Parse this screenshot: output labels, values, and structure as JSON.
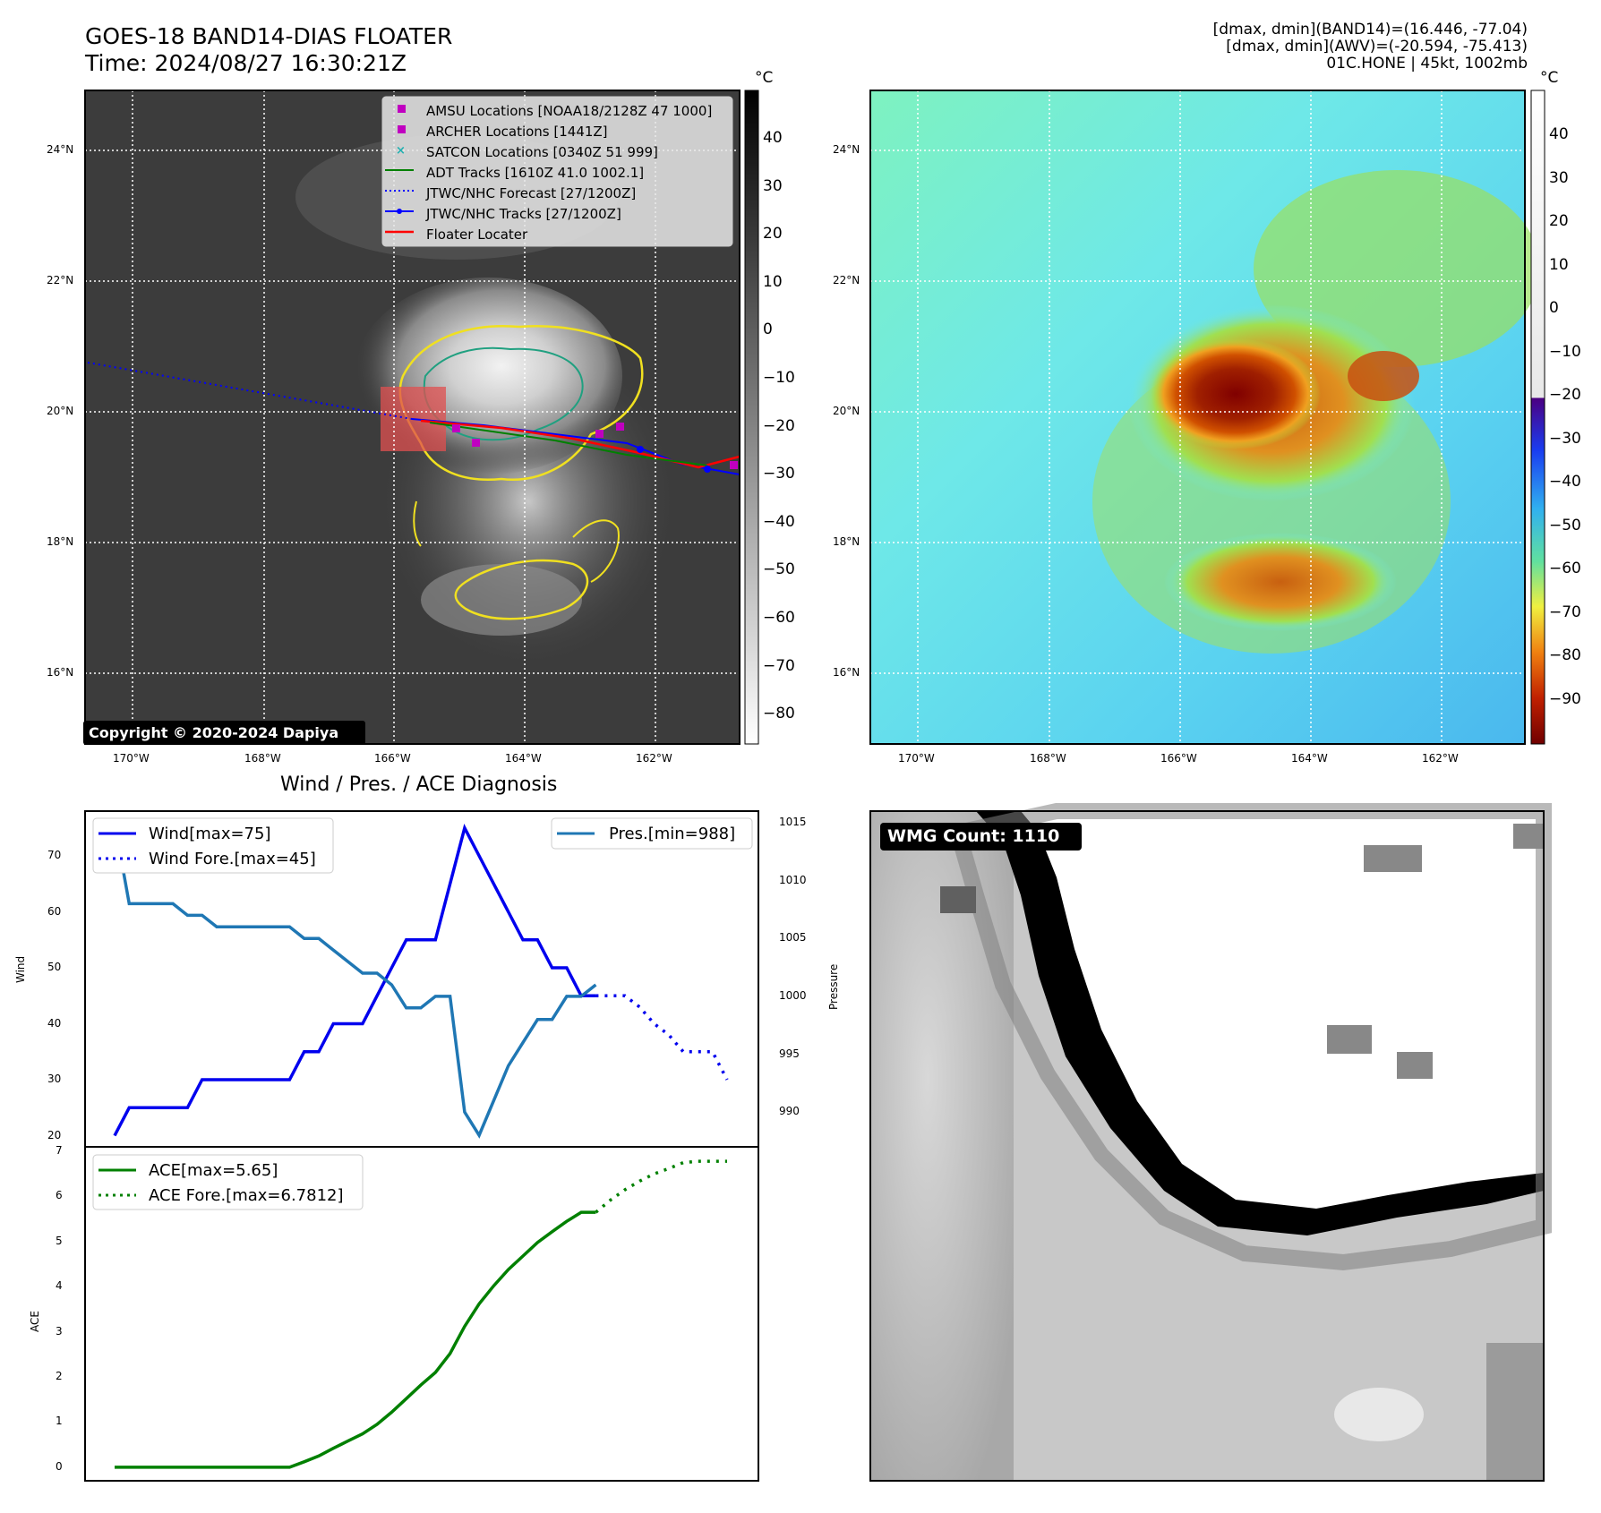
{
  "header": {
    "title_line1": "GOES-18 BAND14-DIAS FLOATER",
    "title_line2": "Time: 2024/08/27 16:30:21Z",
    "info_line1": "[dmax, dmin](BAND14)=(16.446, -77.04)",
    "info_line2": "[dmax, dmin](AWV)=(-20.594, -75.413)",
    "info_line3": "01C.HONE | 45kt, 1002mb"
  },
  "ir_panel": {
    "legend": [
      {
        "label": "AMSU Locations [NOAA18/2128Z 47 1000]",
        "color": "#c000c0",
        "marker": "square"
      },
      {
        "label": "ARCHER Locations [1441Z]",
        "color": "#c000c0",
        "marker": "square"
      },
      {
        "label": "SATCON Locations [0340Z 51 999]",
        "color": "#20b0b0",
        "marker": "x"
      },
      {
        "label": "ADT Tracks [1610Z 41.0 1002.1]",
        "color": "#008000",
        "marker": "line"
      },
      {
        "label": "JTWC/NHC Forecast [27/1200Z]",
        "color": "#0000ff",
        "marker": "dotted"
      },
      {
        "label": "JTWC/NHC Tracks [27/1200Z]",
        "color": "#0000ff",
        "marker": "line-dot"
      },
      {
        "label": "Floater Locater",
        "color": "#ff0000",
        "marker": "line"
      }
    ],
    "copyright": "Copyright © 2020-2024 Dapiya",
    "colorbar_unit": "°C",
    "colorbar_ticks": [
      "40",
      "30",
      "20",
      "10",
      "0",
      "−10",
      "−20",
      "−30",
      "−40",
      "−50",
      "−60",
      "−70",
      "−80"
    ]
  },
  "awv_panel": {
    "colorbar_unit": "°C",
    "colorbar_ticks": [
      "40",
      "30",
      "20",
      "10",
      "0",
      "−10",
      "−20",
      "−30",
      "−40",
      "−50",
      "−60",
      "−70",
      "−80",
      "−90"
    ]
  },
  "map_axes": {
    "lat_ticks": [
      "24°N",
      "22°N",
      "20°N",
      "18°N",
      "16°N"
    ],
    "lon_ticks": [
      "170°W",
      "168°W",
      "166°W",
      "164°W",
      "162°W"
    ]
  },
  "diag": {
    "title": "Wind / Pres. / ACE Diagnosis",
    "wind_ylabel": "Wind",
    "pres_ylabel": "Pressure",
    "ace_ylabel": "ACE",
    "legend_wind": "Wind[max=75]",
    "legend_wind_fore": "Wind Fore.[max=45]",
    "legend_pres": "Pres.[min=988]",
    "legend_ace": "ACE[max=5.65]",
    "legend_ace_fore": "ACE Fore.[max=6.7812]",
    "wind_ticks": [
      "70",
      "60",
      "50",
      "40",
      "30",
      "20"
    ],
    "pres_ticks": [
      "1015",
      "1010",
      "1005",
      "1000",
      "995",
      "990"
    ],
    "ace_ticks": [
      "7",
      "6",
      "5",
      "4",
      "3",
      "2",
      "1",
      "0"
    ]
  },
  "wmg_panel": {
    "label": "WMG Count: 1110"
  },
  "chart_data": [
    {
      "type": "line",
      "title": "Wind / Pres. / ACE Diagnosis",
      "ylabel": "Wind",
      "ylim": [
        18,
        78
      ],
      "series": [
        {
          "name": "Wind[max=75]",
          "color": "#0000ee",
          "style": "solid",
          "x": [
            0,
            1,
            2,
            3,
            4,
            5,
            6,
            7,
            8,
            9,
            10,
            11,
            12,
            13,
            14,
            15,
            16,
            17,
            18,
            19,
            20,
            21,
            22,
            23,
            24,
            25,
            26,
            27,
            28,
            29,
            30,
            31,
            32,
            33
          ],
          "values": [
            20,
            25,
            25,
            25,
            25,
            25,
            30,
            30,
            30,
            30,
            30,
            30,
            30,
            35,
            35,
            40,
            40,
            40,
            45,
            50,
            55,
            55,
            55,
            65,
            75,
            70,
            65,
            60,
            55,
            55,
            50,
            50,
            45,
            45
          ]
        },
        {
          "name": "Wind Fore.[max=45]",
          "color": "#0000ee",
          "style": "dotted",
          "x": [
            33,
            34,
            35,
            36,
            37,
            38,
            39,
            40,
            41,
            42
          ],
          "values": [
            45,
            45,
            45,
            43,
            40,
            38,
            35,
            35,
            35,
            30
          ]
        }
      ]
    },
    {
      "type": "line",
      "ylabel": "Pressure",
      "ylim": [
        987,
        1016
      ],
      "series": [
        {
          "name": "Pres.[min=988]",
          "color": "#1f77b4",
          "style": "solid",
          "x": [
            0,
            1,
            2,
            3,
            4,
            5,
            6,
            7,
            8,
            9,
            10,
            11,
            12,
            13,
            14,
            15,
            16,
            17,
            18,
            19,
            20,
            21,
            22,
            23,
            24,
            25,
            26,
            27,
            28,
            29,
            30,
            31,
            32,
            33
          ],
          "values": [
            1015,
            1008,
            1008,
            1008,
            1008,
            1007,
            1007,
            1006,
            1006,
            1006,
            1006,
            1006,
            1006,
            1005,
            1005,
            1004,
            1003,
            1002,
            1002,
            1001,
            999,
            999,
            1000,
            1000,
            990,
            988,
            991,
            994,
            996,
            998,
            998,
            1000,
            1000,
            1001
          ]
        }
      ]
    },
    {
      "type": "line",
      "ylabel": "ACE",
      "ylim": [
        -0.3,
        7.1
      ],
      "series": [
        {
          "name": "ACE[max=5.65]",
          "color": "#008000",
          "style": "solid",
          "x": [
            0,
            1,
            2,
            3,
            4,
            5,
            6,
            7,
            8,
            9,
            10,
            11,
            12,
            13,
            14,
            15,
            16,
            17,
            18,
            19,
            20,
            21,
            22,
            23,
            24,
            25,
            26,
            27,
            28,
            29,
            30,
            31,
            32,
            33
          ],
          "values": [
            0,
            0,
            0,
            0,
            0,
            0,
            0,
            0,
            0,
            0,
            0,
            0,
            0,
            0.12,
            0.25,
            0.42,
            0.58,
            0.74,
            0.95,
            1.22,
            1.52,
            1.82,
            2.1,
            2.52,
            3.12,
            3.62,
            4.02,
            4.38,
            4.68,
            4.98,
            5.22,
            5.45,
            5.65,
            5.65
          ]
        },
        {
          "name": "ACE Fore.[max=6.7812]",
          "color": "#008000",
          "style": "dotted",
          "x": [
            33,
            34,
            35,
            36,
            37,
            38,
            39,
            40,
            41,
            42
          ],
          "values": [
            5.65,
            5.92,
            6.15,
            6.34,
            6.5,
            6.62,
            6.75,
            6.78,
            6.78,
            6.78
          ]
        }
      ]
    }
  ]
}
